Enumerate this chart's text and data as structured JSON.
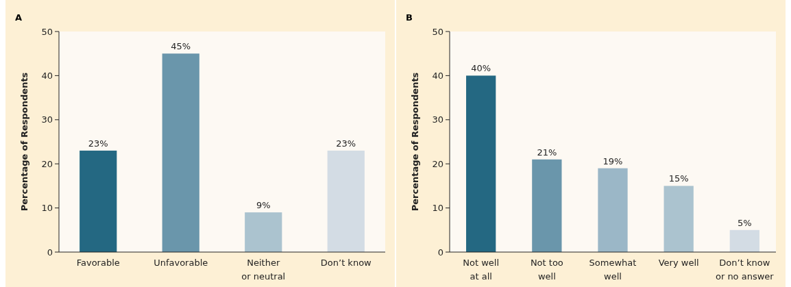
{
  "chart_data": [
    {
      "type": "bar",
      "title": "A",
      "ylabel": "Percentage of Respondents",
      "categories": [
        "Favorable",
        "Unfavorable",
        "Neither\nor neutral",
        "Don’t know"
      ],
      "values": [
        23,
        45,
        9,
        23
      ],
      "colors": [
        "#246882",
        "#6a96ab",
        "#abc3cf",
        "#d3dce4"
      ],
      "value_labels": [
        "23%",
        "45%",
        "9%",
        "23%"
      ],
      "ylim": [
        0,
        50
      ],
      "yticks": [
        0,
        10,
        20,
        30,
        40,
        50
      ],
      "grid": false
    },
    {
      "type": "bar",
      "title": "B",
      "ylabel": "Percentage of Respondents",
      "categories": [
        "Not well\nat all",
        "Not too\nwell",
        "Somewhat\nwell",
        "Very well",
        "Don’t know\nor no answer"
      ],
      "values": [
        40,
        21,
        19,
        15,
        5
      ],
      "colors": [
        "#246882",
        "#6a96ab",
        "#9bb7c7",
        "#abc3cf",
        "#d3dce4"
      ],
      "value_labels": [
        "40%",
        "21%",
        "19%",
        "15%",
        "5%"
      ],
      "ylim": [
        0,
        50
      ],
      "yticks": [
        0,
        10,
        20,
        30,
        40,
        50
      ],
      "grid": false
    }
  ]
}
